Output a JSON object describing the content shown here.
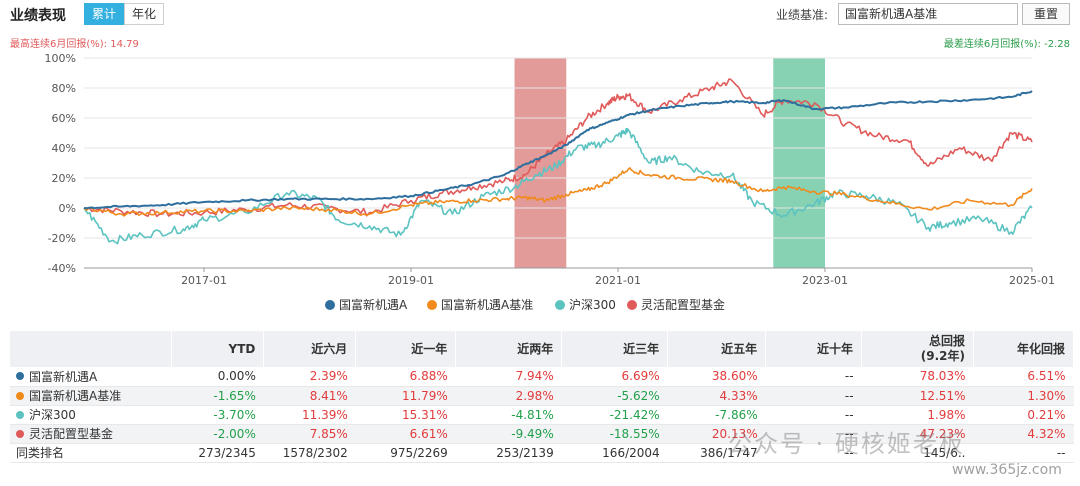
{
  "header": {
    "title": "业绩表现",
    "tabs": [
      "累计",
      "年化"
    ],
    "benchmark_label": "业绩基准:",
    "benchmark_value": "国富新机遇A基准",
    "reset_label": "重置"
  },
  "stats": {
    "max_label": "最高连续6月回报(%):",
    "max_value": "14.79",
    "min_label": "最差连续6月回报(%):",
    "min_value": "-2.28"
  },
  "colors": {
    "fund": "#2e6f9e",
    "benchmark": "#f08a1c",
    "csi300": "#5cc3c1",
    "category": "#e05a5a",
    "best_band": "#d97a77",
    "worst_band": "#5dc39a"
  },
  "chart_data": {
    "type": "line",
    "ylim": [
      -40,
      100
    ],
    "yticks": [
      "100%",
      "80%",
      "60%",
      "40%",
      "20%",
      "0%",
      "-20%",
      "-40%"
    ],
    "yticks_values": [
      100,
      80,
      60,
      40,
      20,
      0,
      -20,
      -40
    ],
    "xticks": [
      "2017-01",
      "2019-01",
      "2021-01",
      "2023-01",
      "2025-01"
    ],
    "xticks_years": [
      2017.0,
      2019.0,
      2021.0,
      2023.0,
      2025.0
    ],
    "xlim": [
      2015.84,
      2025.0
    ],
    "bands": [
      {
        "from": 2020.0,
        "to": 2020.5,
        "kind": "best"
      },
      {
        "from": 2022.5,
        "to": 2023.0,
        "kind": "worst"
      }
    ],
    "series": [
      {
        "name": "国富新机遇A",
        "key": "fund",
        "x": [
          2015.84,
          2016.2,
          2016.6,
          2017.0,
          2017.4,
          2017.8,
          2018.2,
          2018.6,
          2019.0,
          2019.3,
          2019.6,
          2019.9,
          2020.1,
          2020.3,
          2020.5,
          2020.7,
          2020.9,
          2021.1,
          2021.3,
          2021.6,
          2021.9,
          2022.1,
          2022.4,
          2022.6,
          2022.9,
          2023.2,
          2023.6,
          2024.0,
          2024.4,
          2024.8,
          2025.0
        ],
        "values": [
          0,
          1,
          2,
          4,
          5,
          6,
          6,
          6,
          8,
          12,
          16,
          22,
          29,
          35,
          42,
          52,
          57,
          62,
          65,
          68,
          70,
          71,
          70,
          72,
          66,
          67,
          70,
          71,
          72,
          74,
          78
        ]
      },
      {
        "name": "国富新机遇A基准",
        "key": "benchmark",
        "x": [
          2015.84,
          2016.2,
          2016.6,
          2017.0,
          2017.4,
          2017.8,
          2018.2,
          2018.6,
          2019.0,
          2019.3,
          2019.6,
          2019.9,
          2020.1,
          2020.3,
          2020.5,
          2020.7,
          2020.9,
          2021.1,
          2021.3,
          2021.6,
          2021.9,
          2022.1,
          2022.4,
          2022.6,
          2022.9,
          2023.2,
          2023.6,
          2024.0,
          2024.4,
          2024.8,
          2025.0
        ],
        "values": [
          0,
          -4,
          -3,
          -2,
          -2,
          0,
          -1,
          -4,
          2,
          4,
          5,
          6,
          7,
          5,
          9,
          12,
          17,
          26,
          22,
          20,
          19,
          18,
          11,
          14,
          11,
          9,
          4,
          -1,
          5,
          2,
          13
        ]
      },
      {
        "name": "沪深300",
        "key": "csi300",
        "x": [
          2015.84,
          2016.1,
          2016.4,
          2016.8,
          2017.0,
          2017.4,
          2017.8,
          2018.1,
          2018.3,
          2018.6,
          2018.9,
          2019.1,
          2019.4,
          2019.7,
          2020.0,
          2020.2,
          2020.4,
          2020.6,
          2020.8,
          2021.0,
          2021.1,
          2021.3,
          2021.5,
          2021.8,
          2022.1,
          2022.3,
          2022.6,
          2022.9,
          2023.1,
          2023.4,
          2023.7,
          2024.0,
          2024.2,
          2024.5,
          2024.8,
          2025.0
        ],
        "values": [
          0,
          -22,
          -18,
          -14,
          -8,
          -3,
          10,
          6,
          -8,
          -12,
          -18,
          5,
          -4,
          8,
          14,
          22,
          28,
          40,
          42,
          48,
          52,
          30,
          34,
          24,
          22,
          4,
          -5,
          3,
          10,
          8,
          3,
          -13,
          -10,
          -7,
          -16,
          0
        ]
      },
      {
        "name": "灵活配置型基金",
        "key": "category",
        "x": [
          2015.84,
          2016.2,
          2016.6,
          2017.0,
          2017.4,
          2017.8,
          2018.2,
          2018.6,
          2019.0,
          2019.3,
          2019.6,
          2019.9,
          2020.1,
          2020.3,
          2020.5,
          2020.7,
          2020.9,
          2021.0,
          2021.1,
          2021.3,
          2021.6,
          2021.9,
          2022.1,
          2022.4,
          2022.6,
          2022.9,
          2023.2,
          2023.5,
          2023.8,
          2024.0,
          2024.3,
          2024.6,
          2024.8,
          2025.0
        ],
        "values": [
          0,
          -2,
          -4,
          -3,
          -1,
          2,
          0,
          -3,
          5,
          10,
          14,
          18,
          22,
          35,
          45,
          60,
          70,
          74,
          75,
          64,
          72,
          80,
          85,
          62,
          72,
          70,
          56,
          48,
          45,
          28,
          40,
          32,
          50,
          44
        ]
      }
    ]
  },
  "table": {
    "headers": [
      "",
      "YTD",
      "近六月",
      "近一年",
      "近两年",
      "近三年",
      "近五年",
      "近十年",
      "总回报\n(9.2年)",
      "年化回报"
    ],
    "rows": [
      {
        "name": "国富新机遇A",
        "key": "fund",
        "cells": [
          "0.00%",
          "2.39%",
          "6.88%",
          "7.94%",
          "6.69%",
          "38.60%",
          "--",
          "78.03%",
          "6.51%"
        ]
      },
      {
        "name": "国富新机遇A基准",
        "key": "benchmark",
        "cells": [
          "-1.65%",
          "8.41%",
          "11.79%",
          "2.98%",
          "-5.62%",
          "4.33%",
          "--",
          "12.51%",
          "1.30%"
        ]
      },
      {
        "name": "沪深300",
        "key": "csi300",
        "cells": [
          "-3.70%",
          "11.39%",
          "15.31%",
          "-4.81%",
          "-21.42%",
          "-7.86%",
          "--",
          "1.98%",
          "0.21%"
        ]
      },
      {
        "name": "灵活配置型基金",
        "key": "category",
        "cells": [
          "-2.00%",
          "7.85%",
          "6.61%",
          "-9.49%",
          "-18.55%",
          "20.13%",
          "--",
          "47.23%",
          "4.32%"
        ]
      },
      {
        "name": "同类排名",
        "key": "",
        "cells": [
          "273/2345",
          "1578/2302",
          "975/2269",
          "253/2139",
          "166/2004",
          "386/1747",
          "--",
          "145/6..",
          "--"
        ]
      }
    ]
  },
  "watermark": {
    "text": "公众号 · 硬核姬老板",
    "url": "www.365jz.com"
  }
}
